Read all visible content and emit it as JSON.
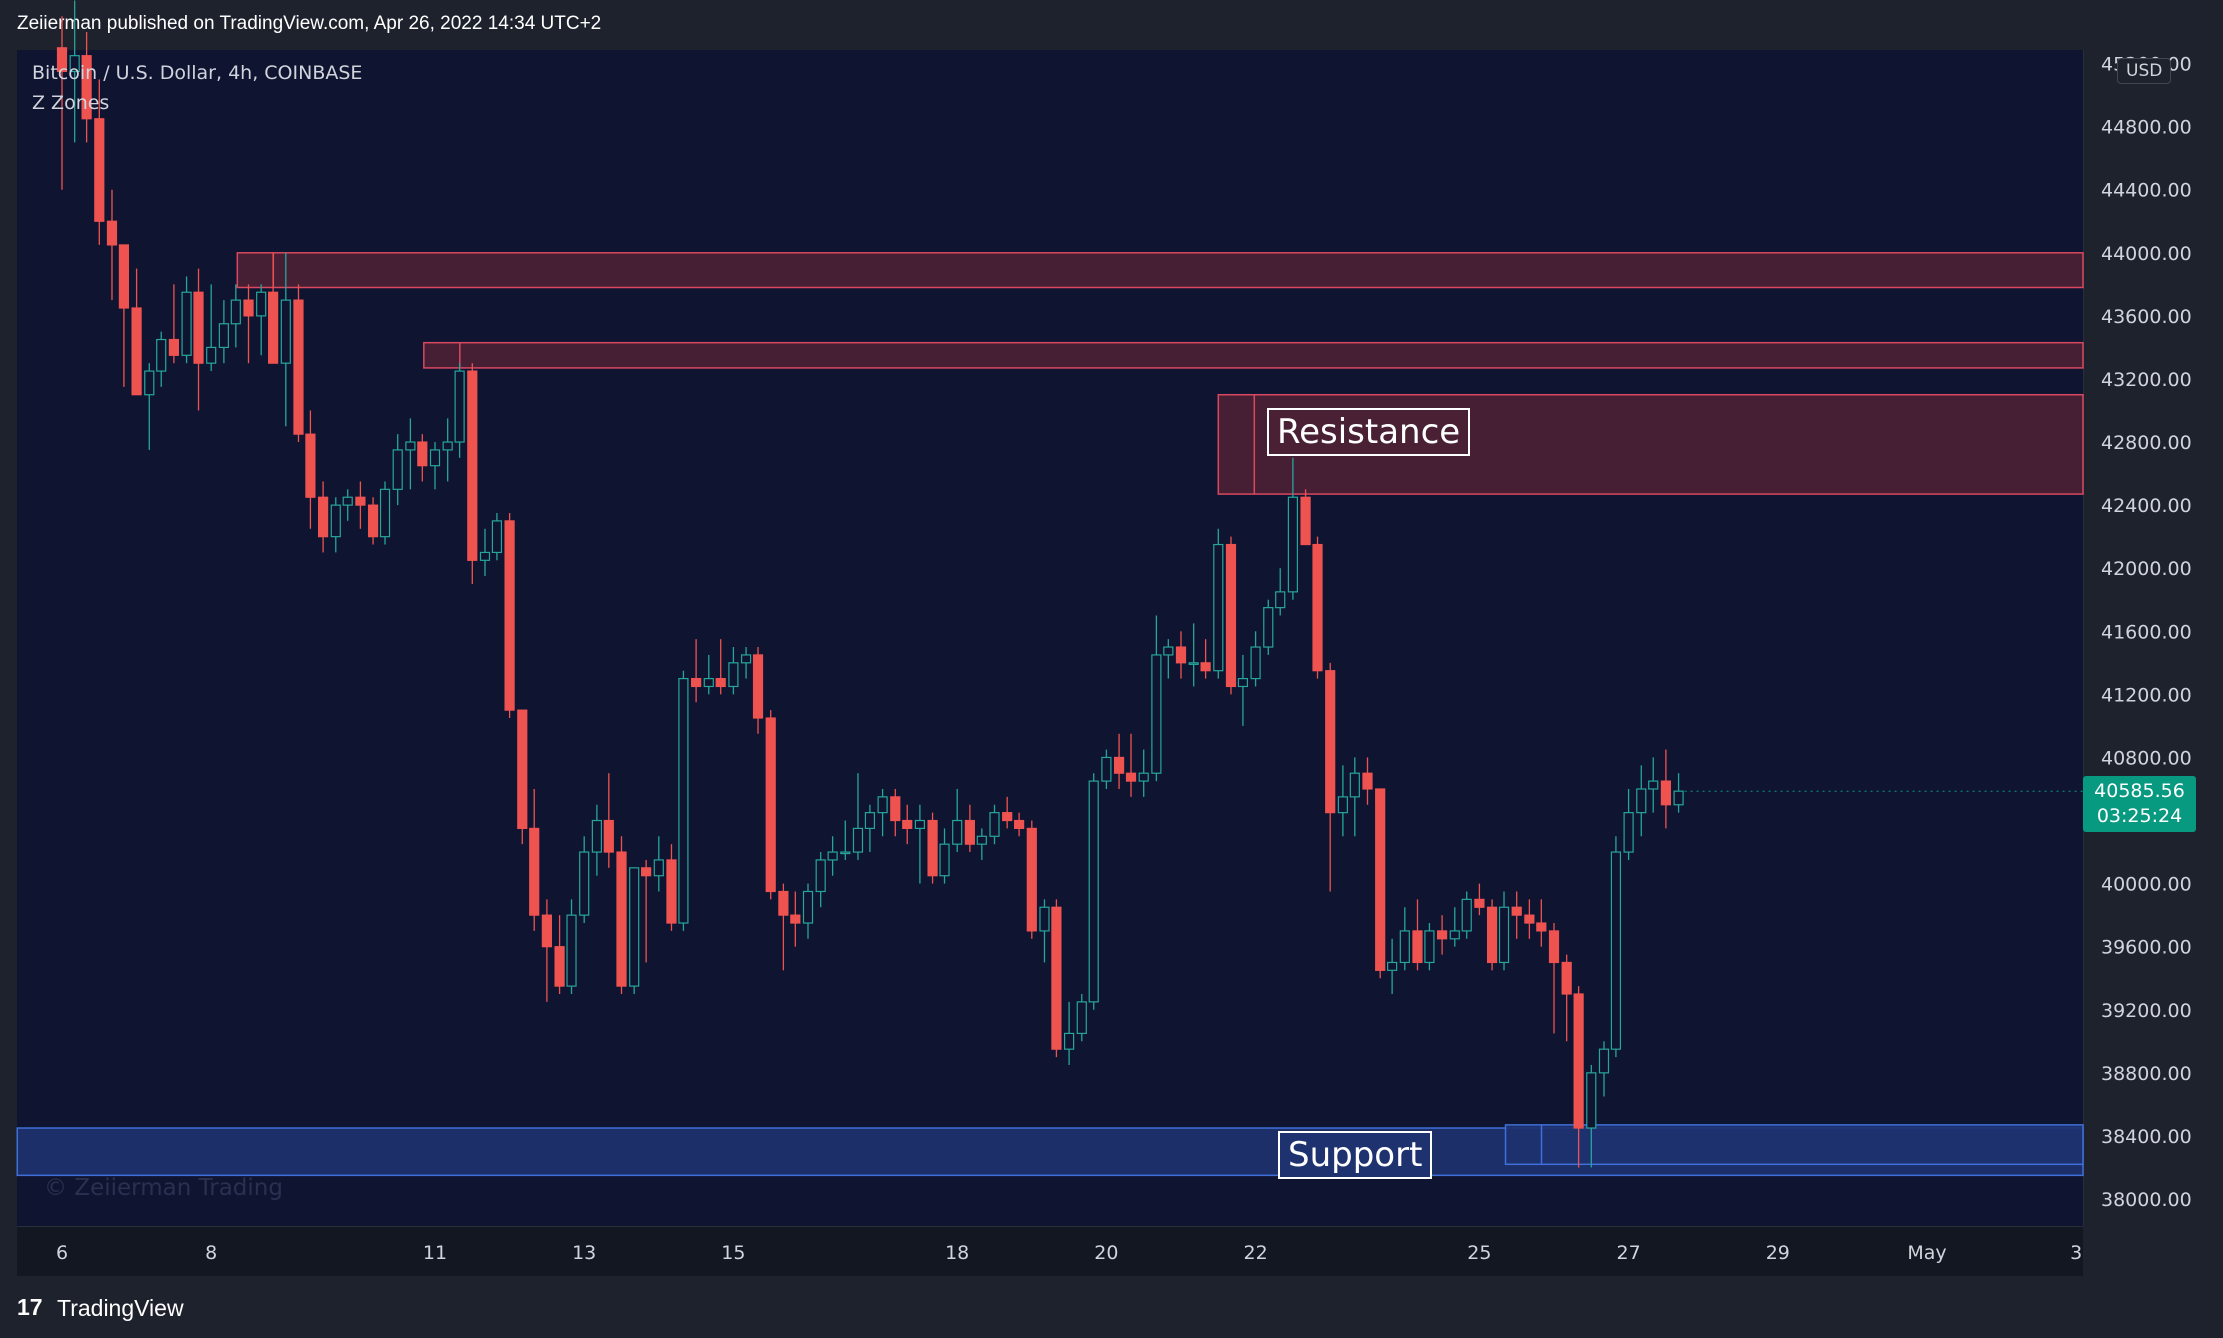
{
  "header": {
    "text": "Zeiierman published on TradingView.com, Apr 26, 2022 14:34 UTC+2"
  },
  "legend": {
    "symbol": "Bitcoin / U.S. Dollar, 4h, COINBASE",
    "indicator": "Z Zones"
  },
  "watermark": "© Zeiierman Trading",
  "footer": {
    "logo": "17",
    "brand": "TradingView"
  },
  "price_axis": {
    "currency": "USD",
    "last_price": "40585.56",
    "countdown": "03:25:24",
    "last_price_value": 40585.56,
    "ticks": [
      "45200.00",
      "44800.00",
      "44400.00",
      "44000.00",
      "43600.00",
      "43200.00",
      "42800.00",
      "42400.00",
      "42000.00",
      "41600.00",
      "41200.00",
      "40800.00",
      "40400.00",
      "40000.00",
      "39600.00",
      "39200.00",
      "38800.00",
      "38400.00",
      "38000.00"
    ]
  },
  "colors": {
    "up": "#26a69a",
    "down": "#ef5350",
    "resistance_fill": "#4a2035",
    "resistance_border": "#d9485f",
    "support_fill": "#1e3270",
    "support_border": "#3f6fd8",
    "last_price_badge": "#089981"
  },
  "chart_data": {
    "type": "candlestick",
    "symbol": "Bitcoin / U.S. Dollar",
    "interval": "4h",
    "exchange": "COINBASE",
    "x_ticks": [
      {
        "label": "6",
        "day": 6
      },
      {
        "label": "8",
        "day": 8
      },
      {
        "label": "11",
        "day": 11
      },
      {
        "label": "13",
        "day": 13
      },
      {
        "label": "15",
        "day": 15
      },
      {
        "label": "18",
        "day": 18
      },
      {
        "label": "20",
        "day": 20
      },
      {
        "label": "22",
        "day": 22
      },
      {
        "label": "25",
        "day": 25
      },
      {
        "label": "27",
        "day": 27
      },
      {
        "label": "29",
        "day": 29
      },
      {
        "label": "May",
        "day": 31
      },
      {
        "label": "3",
        "day": 33
      }
    ],
    "ylim": [
      37800,
      45300
    ],
    "grid": false,
    "zones": [
      {
        "kind": "resistance",
        "start_day": 8.35,
        "high": 44000,
        "low": 43780
      },
      {
        "kind": "resistance",
        "start_day": 10.85,
        "high": 43430,
        "low": 43270
      },
      {
        "kind": "resistance",
        "start_day": 21.5,
        "high": 43100,
        "low": 42470,
        "label": "Resistance"
      },
      {
        "kind": "support",
        "start_day": 5.4,
        "high": 38450,
        "low": 38150,
        "label": "Support"
      },
      {
        "kind": "support",
        "start_day": 25.35,
        "high": 38470,
        "low": 38220
      }
    ],
    "candles": [
      {
        "t": 6.0,
        "o": 45300,
        "h": 45500,
        "l": 44400,
        "c": 45150
      },
      {
        "t": 6.17,
        "o": 45150,
        "h": 45600,
        "l": 44700,
        "c": 45250
      },
      {
        "t": 6.33,
        "o": 45250,
        "h": 45400,
        "l": 44700,
        "c": 44850
      },
      {
        "t": 6.5,
        "o": 44850,
        "h": 45100,
        "l": 44050,
        "c": 44200
      },
      {
        "t": 6.67,
        "o": 44200,
        "h": 44400,
        "l": 43700,
        "c": 44050
      },
      {
        "t": 6.83,
        "o": 44050,
        "h": 44000,
        "l": 43150,
        "c": 43650
      },
      {
        "t": 7.0,
        "o": 43650,
        "h": 43900,
        "l": 43100,
        "c": 43100
      },
      {
        "t": 7.17,
        "o": 43100,
        "h": 43300,
        "l": 42750,
        "c": 43250
      },
      {
        "t": 7.33,
        "o": 43250,
        "h": 43500,
        "l": 43150,
        "c": 43450
      },
      {
        "t": 7.5,
        "o": 43450,
        "h": 43800,
        "l": 43300,
        "c": 43350
      },
      {
        "t": 7.67,
        "o": 43350,
        "h": 43850,
        "l": 43300,
        "c": 43750
      },
      {
        "t": 7.83,
        "o": 43750,
        "h": 43900,
        "l": 43000,
        "c": 43300
      },
      {
        "t": 8.0,
        "o": 43300,
        "h": 43800,
        "l": 43250,
        "c": 43400
      },
      {
        "t": 8.17,
        "o": 43400,
        "h": 43700,
        "l": 43300,
        "c": 43550
      },
      {
        "t": 8.33,
        "o": 43550,
        "h": 43800,
        "l": 43400,
        "c": 43700
      },
      {
        "t": 8.5,
        "o": 43700,
        "h": 43800,
        "l": 43300,
        "c": 43600
      },
      {
        "t": 8.67,
        "o": 43600,
        "h": 43800,
        "l": 43350,
        "c": 43750
      },
      {
        "t": 8.83,
        "o": 43750,
        "h": 44000,
        "l": 43300,
        "c": 43300
      },
      {
        "t": 9.0,
        "o": 43300,
        "h": 44000,
        "l": 42900,
        "c": 43700
      },
      {
        "t": 9.17,
        "o": 43700,
        "h": 43800,
        "l": 42800,
        "c": 42850
      },
      {
        "t": 9.33,
        "o": 42850,
        "h": 43000,
        "l": 42250,
        "c": 42450
      },
      {
        "t": 9.5,
        "o": 42450,
        "h": 42550,
        "l": 42100,
        "c": 42200
      },
      {
        "t": 9.67,
        "o": 42200,
        "h": 42450,
        "l": 42100,
        "c": 42400
      },
      {
        "t": 9.83,
        "o": 42400,
        "h": 42500,
        "l": 42300,
        "c": 42450
      },
      {
        "t": 10.0,
        "o": 42450,
        "h": 42550,
        "l": 42250,
        "c": 42400
      },
      {
        "t": 10.17,
        "o": 42400,
        "h": 42450,
        "l": 42150,
        "c": 42200
      },
      {
        "t": 10.33,
        "o": 42200,
        "h": 42550,
        "l": 42150,
        "c": 42500
      },
      {
        "t": 10.5,
        "o": 42500,
        "h": 42850,
        "l": 42400,
        "c": 42750
      },
      {
        "t": 10.67,
        "o": 42750,
        "h": 42950,
        "l": 42500,
        "c": 42800
      },
      {
        "t": 10.83,
        "o": 42800,
        "h": 42850,
        "l": 42550,
        "c": 42650
      },
      {
        "t": 11.0,
        "o": 42650,
        "h": 42800,
        "l": 42500,
        "c": 42750
      },
      {
        "t": 11.17,
        "o": 42750,
        "h": 42950,
        "l": 42550,
        "c": 42800
      },
      {
        "t": 11.33,
        "o": 42800,
        "h": 43300,
        "l": 42700,
        "c": 43250
      },
      {
        "t": 11.5,
        "o": 43250,
        "h": 43300,
        "l": 41900,
        "c": 42050
      },
      {
        "t": 11.67,
        "o": 42050,
        "h": 42250,
        "l": 41950,
        "c": 42100
      },
      {
        "t": 11.83,
        "o": 42100,
        "h": 42350,
        "l": 42050,
        "c": 42300
      },
      {
        "t": 12.0,
        "o": 42300,
        "h": 42350,
        "l": 41050,
        "c": 41100
      },
      {
        "t": 12.17,
        "o": 41100,
        "h": 41100,
        "l": 40250,
        "c": 40350
      },
      {
        "t": 12.33,
        "o": 40350,
        "h": 40600,
        "l": 39700,
        "c": 39800
      },
      {
        "t": 12.5,
        "o": 39800,
        "h": 39900,
        "l": 39250,
        "c": 39600
      },
      {
        "t": 12.67,
        "o": 39600,
        "h": 39800,
        "l": 39300,
        "c": 39350
      },
      {
        "t": 12.83,
        "o": 39350,
        "h": 39900,
        "l": 39300,
        "c": 39800
      },
      {
        "t": 13.0,
        "o": 39800,
        "h": 40300,
        "l": 39750,
        "c": 40200
      },
      {
        "t": 13.17,
        "o": 40200,
        "h": 40500,
        "l": 40050,
        "c": 40400
      },
      {
        "t": 13.33,
        "o": 40400,
        "h": 40700,
        "l": 40100,
        "c": 40200
      },
      {
        "t": 13.5,
        "o": 40200,
        "h": 40300,
        "l": 39300,
        "c": 39350
      },
      {
        "t": 13.67,
        "o": 39350,
        "h": 40100,
        "l": 39300,
        "c": 40100
      },
      {
        "t": 13.83,
        "o": 40100,
        "h": 40150,
        "l": 39500,
        "c": 40050
      },
      {
        "t": 14.0,
        "o": 40050,
        "h": 40300,
        "l": 39950,
        "c": 40150
      },
      {
        "t": 14.17,
        "o": 40150,
        "h": 40250,
        "l": 39700,
        "c": 39750
      },
      {
        "t": 14.33,
        "o": 39750,
        "h": 41350,
        "l": 39700,
        "c": 41300
      },
      {
        "t": 14.5,
        "o": 41300,
        "h": 41550,
        "l": 41150,
        "c": 41250
      },
      {
        "t": 14.67,
        "o": 41250,
        "h": 41450,
        "l": 41200,
        "c": 41300
      },
      {
        "t": 14.83,
        "o": 41300,
        "h": 41550,
        "l": 41200,
        "c": 41250
      },
      {
        "t": 15.0,
        "o": 41250,
        "h": 41500,
        "l": 41200,
        "c": 41400
      },
      {
        "t": 15.17,
        "o": 41400,
        "h": 41500,
        "l": 41300,
        "c": 41450
      },
      {
        "t": 15.33,
        "o": 41450,
        "h": 41500,
        "l": 40950,
        "c": 41050
      },
      {
        "t": 15.5,
        "o": 41050,
        "h": 41100,
        "l": 39900,
        "c": 39950
      },
      {
        "t": 15.67,
        "o": 39950,
        "h": 40000,
        "l": 39450,
        "c": 39800
      },
      {
        "t": 15.83,
        "o": 39800,
        "h": 39950,
        "l": 39600,
        "c": 39750
      },
      {
        "t": 16.0,
        "o": 39750,
        "h": 40000,
        "l": 39650,
        "c": 39950
      },
      {
        "t": 16.17,
        "o": 39950,
        "h": 40200,
        "l": 39850,
        "c": 40150
      },
      {
        "t": 16.33,
        "o": 40150,
        "h": 40300,
        "l": 40050,
        "c": 40200
      },
      {
        "t": 16.5,
        "o": 40200,
        "h": 40400,
        "l": 40150,
        "c": 40200
      },
      {
        "t": 16.67,
        "o": 40200,
        "h": 40700,
        "l": 40150,
        "c": 40350
      },
      {
        "t": 16.83,
        "o": 40350,
        "h": 40500,
        "l": 40200,
        "c": 40450
      },
      {
        "t": 17.0,
        "o": 40450,
        "h": 40600,
        "l": 40300,
        "c": 40550
      },
      {
        "t": 17.17,
        "o": 40550,
        "h": 40600,
        "l": 40300,
        "c": 40400
      },
      {
        "t": 17.33,
        "o": 40400,
        "h": 40500,
        "l": 40250,
        "c": 40350
      },
      {
        "t": 17.5,
        "o": 40350,
        "h": 40500,
        "l": 40000,
        "c": 40400
      },
      {
        "t": 17.67,
        "o": 40400,
        "h": 40450,
        "l": 40000,
        "c": 40050
      },
      {
        "t": 17.83,
        "o": 40050,
        "h": 40350,
        "l": 40000,
        "c": 40250
      },
      {
        "t": 18.0,
        "o": 40250,
        "h": 40600,
        "l": 40200,
        "c": 40400
      },
      {
        "t": 18.17,
        "o": 40400,
        "h": 40500,
        "l": 40200,
        "c": 40250
      },
      {
        "t": 18.33,
        "o": 40250,
        "h": 40350,
        "l": 40150,
        "c": 40300
      },
      {
        "t": 18.5,
        "o": 40300,
        "h": 40500,
        "l": 40250,
        "c": 40450
      },
      {
        "t": 18.67,
        "o": 40450,
        "h": 40550,
        "l": 40350,
        "c": 40400
      },
      {
        "t": 18.83,
        "o": 40400,
        "h": 40450,
        "l": 40300,
        "c": 40350
      },
      {
        "t": 19.0,
        "o": 40350,
        "h": 40400,
        "l": 39650,
        "c": 39700
      },
      {
        "t": 19.17,
        "o": 39700,
        "h": 39900,
        "l": 39500,
        "c": 39850
      },
      {
        "t": 19.33,
        "o": 39850,
        "h": 39900,
        "l": 38900,
        "c": 38950
      },
      {
        "t": 19.5,
        "o": 38950,
        "h": 39250,
        "l": 38850,
        "c": 39050
      },
      {
        "t": 19.67,
        "o": 39050,
        "h": 39300,
        "l": 39000,
        "c": 39250
      },
      {
        "t": 19.83,
        "o": 39250,
        "h": 40700,
        "l": 39200,
        "c": 40650
      },
      {
        "t": 20.0,
        "o": 40650,
        "h": 40850,
        "l": 40600,
        "c": 40800
      },
      {
        "t": 20.17,
        "o": 40800,
        "h": 40950,
        "l": 40600,
        "c": 40700
      },
      {
        "t": 20.33,
        "o": 40700,
        "h": 40950,
        "l": 40550,
        "c": 40650
      },
      {
        "t": 20.5,
        "o": 40650,
        "h": 40850,
        "l": 40550,
        "c": 40700
      },
      {
        "t": 20.67,
        "o": 40700,
        "h": 41700,
        "l": 40650,
        "c": 41450
      },
      {
        "t": 20.83,
        "o": 41450,
        "h": 41550,
        "l": 41300,
        "c": 41500
      },
      {
        "t": 21.0,
        "o": 41500,
        "h": 41600,
        "l": 41300,
        "c": 41400
      },
      {
        "t": 21.17,
        "o": 41400,
        "h": 41650,
        "l": 41250,
        "c": 41400
      },
      {
        "t": 21.33,
        "o": 41400,
        "h": 41550,
        "l": 41300,
        "c": 41350
      },
      {
        "t": 21.5,
        "o": 41350,
        "h": 42250,
        "l": 41300,
        "c": 42150
      },
      {
        "t": 21.67,
        "o": 42150,
        "h": 42200,
        "l": 41200,
        "c": 41250
      },
      {
        "t": 21.83,
        "o": 41250,
        "h": 41450,
        "l": 41000,
        "c": 41300
      },
      {
        "t": 22.0,
        "o": 41300,
        "h": 41600,
        "l": 41250,
        "c": 41500
      },
      {
        "t": 22.17,
        "o": 41500,
        "h": 41800,
        "l": 41450,
        "c": 41750
      },
      {
        "t": 22.33,
        "o": 41750,
        "h": 42000,
        "l": 41700,
        "c": 41850
      },
      {
        "t": 22.5,
        "o": 41850,
        "h": 42700,
        "l": 41800,
        "c": 42450
      },
      {
        "t": 22.67,
        "o": 42450,
        "h": 42500,
        "l": 42200,
        "c": 42150
      },
      {
        "t": 22.83,
        "o": 42150,
        "h": 42200,
        "l": 41300,
        "c": 41350
      },
      {
        "t": 23.0,
        "o": 41350,
        "h": 41400,
        "l": 39950,
        "c": 40450
      },
      {
        "t": 23.17,
        "o": 40450,
        "h": 40750,
        "l": 40300,
        "c": 40550
      },
      {
        "t": 23.33,
        "o": 40550,
        "h": 40800,
        "l": 40300,
        "c": 40700
      },
      {
        "t": 23.5,
        "o": 40700,
        "h": 40800,
        "l": 40500,
        "c": 40600
      },
      {
        "t": 23.67,
        "o": 40600,
        "h": 40600,
        "l": 39400,
        "c": 39450
      },
      {
        "t": 23.83,
        "o": 39450,
        "h": 39650,
        "l": 39300,
        "c": 39500
      },
      {
        "t": 24.0,
        "o": 39500,
        "h": 39850,
        "l": 39450,
        "c": 39700
      },
      {
        "t": 24.17,
        "o": 39700,
        "h": 39900,
        "l": 39450,
        "c": 39500
      },
      {
        "t": 24.33,
        "o": 39500,
        "h": 39750,
        "l": 39450,
        "c": 39700
      },
      {
        "t": 24.5,
        "o": 39700,
        "h": 39800,
        "l": 39550,
        "c": 39650
      },
      {
        "t": 24.67,
        "o": 39650,
        "h": 39850,
        "l": 39600,
        "c": 39700
      },
      {
        "t": 24.83,
        "o": 39700,
        "h": 39950,
        "l": 39650,
        "c": 39900
      },
      {
        "t": 25.0,
        "o": 39900,
        "h": 40000,
        "l": 39800,
        "c": 39850
      },
      {
        "t": 25.17,
        "o": 39850,
        "h": 39900,
        "l": 39450,
        "c": 39500
      },
      {
        "t": 25.33,
        "o": 39500,
        "h": 39950,
        "l": 39450,
        "c": 39850
      },
      {
        "t": 25.5,
        "o": 39850,
        "h": 39950,
        "l": 39650,
        "c": 39800
      },
      {
        "t": 25.67,
        "o": 39800,
        "h": 39900,
        "l": 39650,
        "c": 39750
      },
      {
        "t": 25.83,
        "o": 39750,
        "h": 39900,
        "l": 39600,
        "c": 39700
      },
      {
        "t": 26.0,
        "o": 39700,
        "h": 39750,
        "l": 39050,
        "c": 39500
      },
      {
        "t": 26.17,
        "o": 39500,
        "h": 39550,
        "l": 39000,
        "c": 39300
      },
      {
        "t": 26.33,
        "o": 39300,
        "h": 39350,
        "l": 38200,
        "c": 38450
      },
      {
        "t": 26.5,
        "o": 38450,
        "h": 38850,
        "l": 38200,
        "c": 38800
      },
      {
        "t": 26.67,
        "o": 38800,
        "h": 39000,
        "l": 38650,
        "c": 38950
      },
      {
        "t": 26.83,
        "o": 38950,
        "h": 40300,
        "l": 38900,
        "c": 40200
      },
      {
        "t": 27.0,
        "o": 40200,
        "h": 40600,
        "l": 40150,
        "c": 40450
      },
      {
        "t": 27.17,
        "o": 40450,
        "h": 40750,
        "l": 40300,
        "c": 40600
      },
      {
        "t": 27.33,
        "o": 40600,
        "h": 40800,
        "l": 40450,
        "c": 40650
      },
      {
        "t": 27.5,
        "o": 40650,
        "h": 40850,
        "l": 40350,
        "c": 40500
      },
      {
        "t": 27.67,
        "o": 40500,
        "h": 40700,
        "l": 40450,
        "c": 40586
      }
    ]
  }
}
